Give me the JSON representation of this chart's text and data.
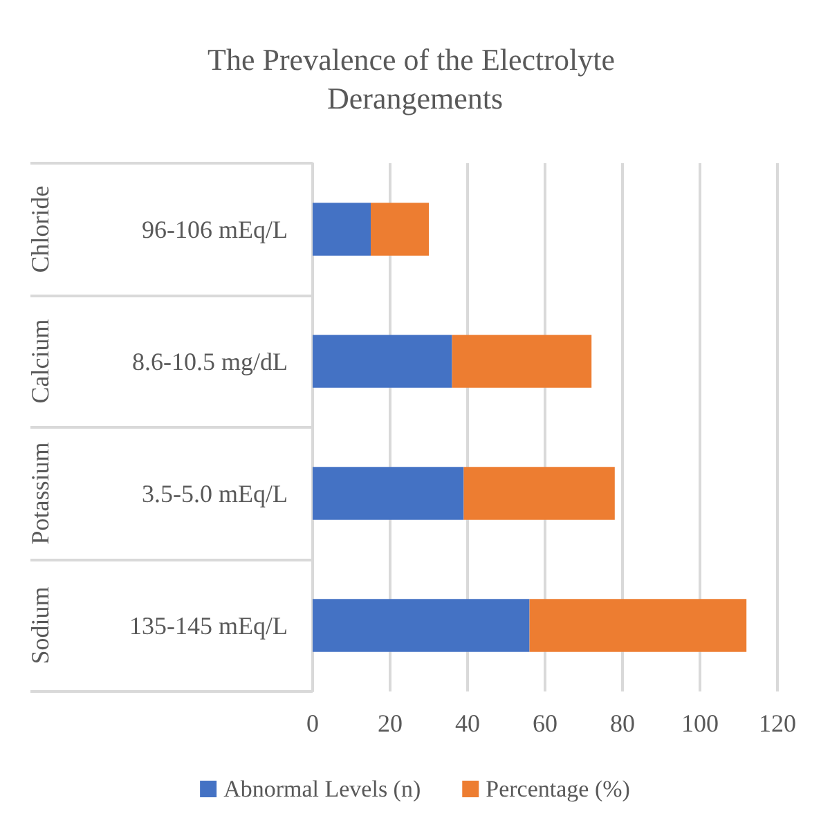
{
  "chart_data": {
    "type": "bar",
    "orientation": "horizontal",
    "stacked": true,
    "title": "The Prevalence of the Electrolyte Derangements",
    "categories": [
      "96-106 mEq/L",
      "8.6-10.5 mg/dL",
      "3.5-5.0 mEq/L",
      "135-145 mEq/L"
    ],
    "series": [
      {
        "name": "Abnormal Levels (n)",
        "color": "#4472c4",
        "values": [
          15,
          36,
          39,
          56
        ]
      },
      {
        "name": "Percentage (%)",
        "color": "#ed7d31",
        "values": [
          15,
          36,
          39,
          56
        ]
      }
    ],
    "xlim": [
      0,
      120
    ],
    "xticks": [
      0,
      20,
      40,
      60,
      80,
      100,
      120
    ],
    "grid": "x",
    "legend": "bottom",
    "annotations": [
      "Chloride",
      "Calcium",
      "Potassium",
      "Sodium"
    ]
  }
}
